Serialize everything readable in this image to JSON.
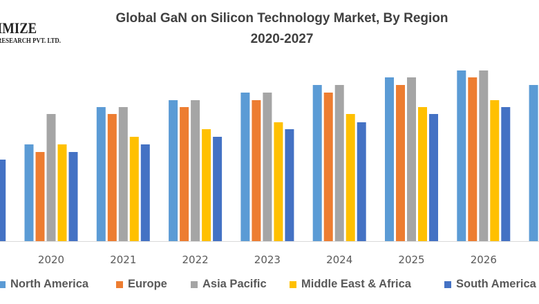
{
  "logo": {
    "line1": "IMIZE",
    "line2": "RESEARCH PVT. LTD."
  },
  "chart_data": {
    "type": "bar",
    "title": "Global GaN on Silicon Technology Market, By Region",
    "subtitle": "2020-2027",
    "xlabel": "",
    "ylabel": "",
    "y_axis_shown": false,
    "grid": false,
    "legend_position": "bottom",
    "categories": [
      "",
      "2020",
      "2021",
      "2022",
      "2023",
      "2024",
      "2025",
      "2026",
      ""
    ],
    "ylim": [
      0,
      250
    ],
    "series": [
      {
        "name": "North America",
        "color": "#5B9BD5",
        "values": [
          null,
          140,
          194,
          204,
          215,
          226,
          237,
          247,
          226
        ]
      },
      {
        "name": "Europe",
        "color": "#ED7D31",
        "values": [
          null,
          129,
          184,
          194,
          204,
          215,
          226,
          237,
          null
        ]
      },
      {
        "name": "Asia Pacific",
        "color": "#A5A5A5",
        "values": [
          null,
          184,
          194,
          204,
          215,
          226,
          237,
          247,
          null
        ]
      },
      {
        "name": "Middle East & Africa",
        "color": "#FFC000",
        "values": [
          null,
          140,
          151,
          162,
          172,
          184,
          194,
          204,
          null
        ]
      },
      {
        "name": "South America",
        "color": "#4472C4",
        "values": [
          118,
          129,
          140,
          151,
          162,
          172,
          184,
          194,
          null
        ]
      }
    ]
  }
}
